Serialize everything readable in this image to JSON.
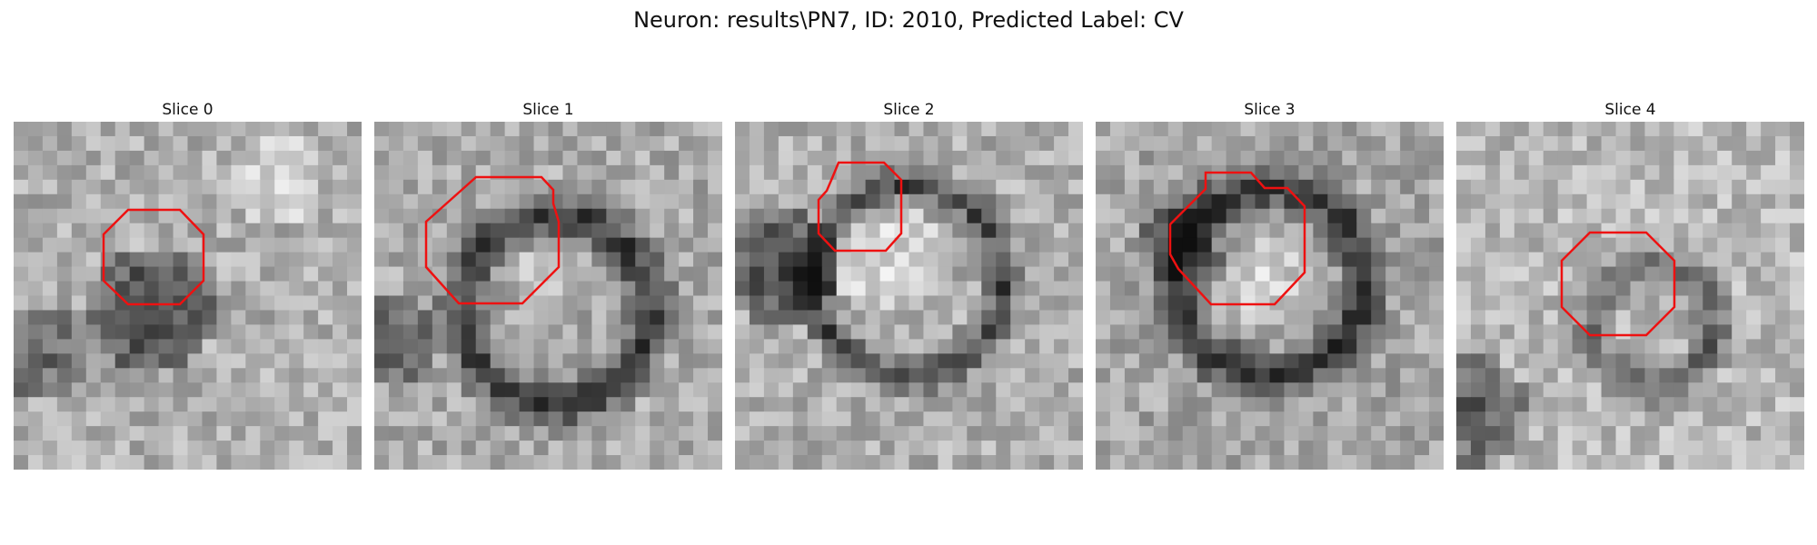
{
  "figure": {
    "title": "Neuron: results\\PN7, ID: 2010, Predicted Label: CV",
    "contour_color": "#ee1111"
  },
  "slices": [
    {
      "title": "Slice 0",
      "description": "grayscale EM patch, dark irregular vesicle with red octagonal contour"
    },
    {
      "title": "Slice 1",
      "description": "grayscale EM patch, round vesicle with dark membrane ring and red contour"
    },
    {
      "title": "Slice 2",
      "description": "grayscale EM patch, large bright vesicle with red contour"
    },
    {
      "title": "Slice 3",
      "description": "grayscale EM patch, bright vesicle with thick dark ring and red contour"
    },
    {
      "title": "Slice 4",
      "description": "grayscale EM patch, small ring-shaped vesicle with red octagonal contour"
    }
  ]
}
